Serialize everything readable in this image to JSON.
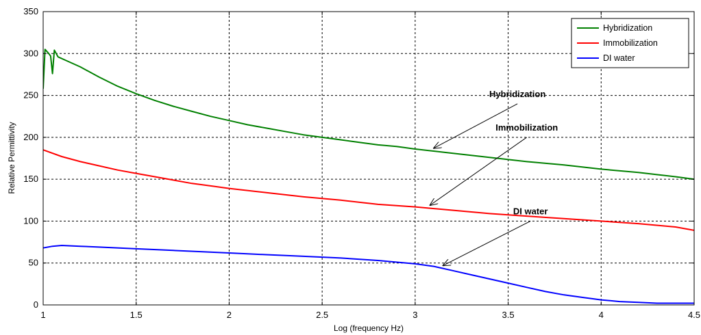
{
  "chart_data": {
    "type": "line",
    "title": "",
    "xlabel": "Log (frequency Hz)",
    "ylabel": "Relative Permittivity",
    "xlim": [
      1,
      4.5
    ],
    "ylim": [
      0,
      350
    ],
    "xticks": [
      "1",
      "1.5",
      "2",
      "2.5",
      "3",
      "3.5",
      "4",
      "4.5"
    ],
    "yticks": [
      "0",
      "50",
      "100",
      "150",
      "200",
      "250",
      "300",
      "350"
    ],
    "grid": true,
    "legend_position": "top-right",
    "series": [
      {
        "name": "Hybridization",
        "color": "#008000",
        "points": [
          [
            1.0,
            258
          ],
          [
            1.01,
            305
          ],
          [
            1.03,
            300
          ],
          [
            1.04,
            297
          ],
          [
            1.05,
            276
          ],
          [
            1.06,
            304
          ],
          [
            1.08,
            296
          ],
          [
            1.12,
            292
          ],
          [
            1.2,
            284
          ],
          [
            1.3,
            272
          ],
          [
            1.4,
            261
          ],
          [
            1.5,
            252
          ],
          [
            1.6,
            244
          ],
          [
            1.7,
            237
          ],
          [
            1.8,
            231
          ],
          [
            1.9,
            225
          ],
          [
            2.0,
            220
          ],
          [
            2.1,
            215
          ],
          [
            2.2,
            211
          ],
          [
            2.3,
            207
          ],
          [
            2.4,
            203
          ],
          [
            2.5,
            200
          ],
          [
            2.6,
            197
          ],
          [
            2.7,
            194
          ],
          [
            2.8,
            191
          ],
          [
            2.9,
            189
          ],
          [
            3.0,
            186
          ],
          [
            3.2,
            181
          ],
          [
            3.4,
            176
          ],
          [
            3.6,
            171
          ],
          [
            3.8,
            167
          ],
          [
            4.0,
            162
          ],
          [
            4.2,
            158
          ],
          [
            4.4,
            153
          ],
          [
            4.5,
            150
          ]
        ]
      },
      {
        "name": "Immobilization",
        "color": "#ff0000",
        "points": [
          [
            1.0,
            185
          ],
          [
            1.1,
            177
          ],
          [
            1.2,
            171
          ],
          [
            1.3,
            166
          ],
          [
            1.4,
            161
          ],
          [
            1.5,
            157
          ],
          [
            1.6,
            153
          ],
          [
            1.7,
            149
          ],
          [
            1.8,
            145
          ],
          [
            1.9,
            142
          ],
          [
            2.0,
            139
          ],
          [
            2.2,
            134
          ],
          [
            2.4,
            129
          ],
          [
            2.6,
            125
          ],
          [
            2.8,
            120
          ],
          [
            3.0,
            117
          ],
          [
            3.2,
            113
          ],
          [
            3.4,
            109
          ],
          [
            3.6,
            106
          ],
          [
            3.8,
            103
          ],
          [
            4.0,
            100
          ],
          [
            4.2,
            97
          ],
          [
            4.4,
            93
          ],
          [
            4.5,
            89
          ]
        ]
      },
      {
        "name": "DI water",
        "color": "#0000ff",
        "points": [
          [
            1.0,
            68
          ],
          [
            1.05,
            70
          ],
          [
            1.1,
            71
          ],
          [
            1.2,
            70
          ],
          [
            1.3,
            69
          ],
          [
            1.5,
            67
          ],
          [
            1.7,
            65
          ],
          [
            2.0,
            62
          ],
          [
            2.2,
            60
          ],
          [
            2.4,
            58
          ],
          [
            2.6,
            56
          ],
          [
            2.8,
            53
          ],
          [
            3.0,
            49
          ],
          [
            3.1,
            46
          ],
          [
            3.2,
            41
          ],
          [
            3.3,
            36
          ],
          [
            3.4,
            31
          ],
          [
            3.5,
            26
          ],
          [
            3.6,
            21
          ],
          [
            3.7,
            16
          ],
          [
            3.8,
            12
          ],
          [
            3.9,
            9
          ],
          [
            4.0,
            6
          ],
          [
            4.1,
            4
          ],
          [
            4.2,
            3
          ],
          [
            4.3,
            2
          ],
          [
            4.5,
            2
          ]
        ]
      }
    ],
    "annotations": [
      {
        "text": "Hybridization",
        "label_at": [
          3.55,
          248
        ],
        "arrow_from": [
          3.55,
          240
        ],
        "arrow_to": [
          3.1,
          187
        ]
      },
      {
        "text": "Immobilization",
        "label_at": [
          3.6,
          208
        ],
        "arrow_from": [
          3.6,
          200
        ],
        "arrow_to": [
          3.08,
          119
        ]
      },
      {
        "text": "DI water",
        "label_at": [
          3.62,
          108
        ],
        "arrow_from": [
          3.62,
          100
        ],
        "arrow_to": [
          3.15,
          47
        ]
      }
    ]
  }
}
